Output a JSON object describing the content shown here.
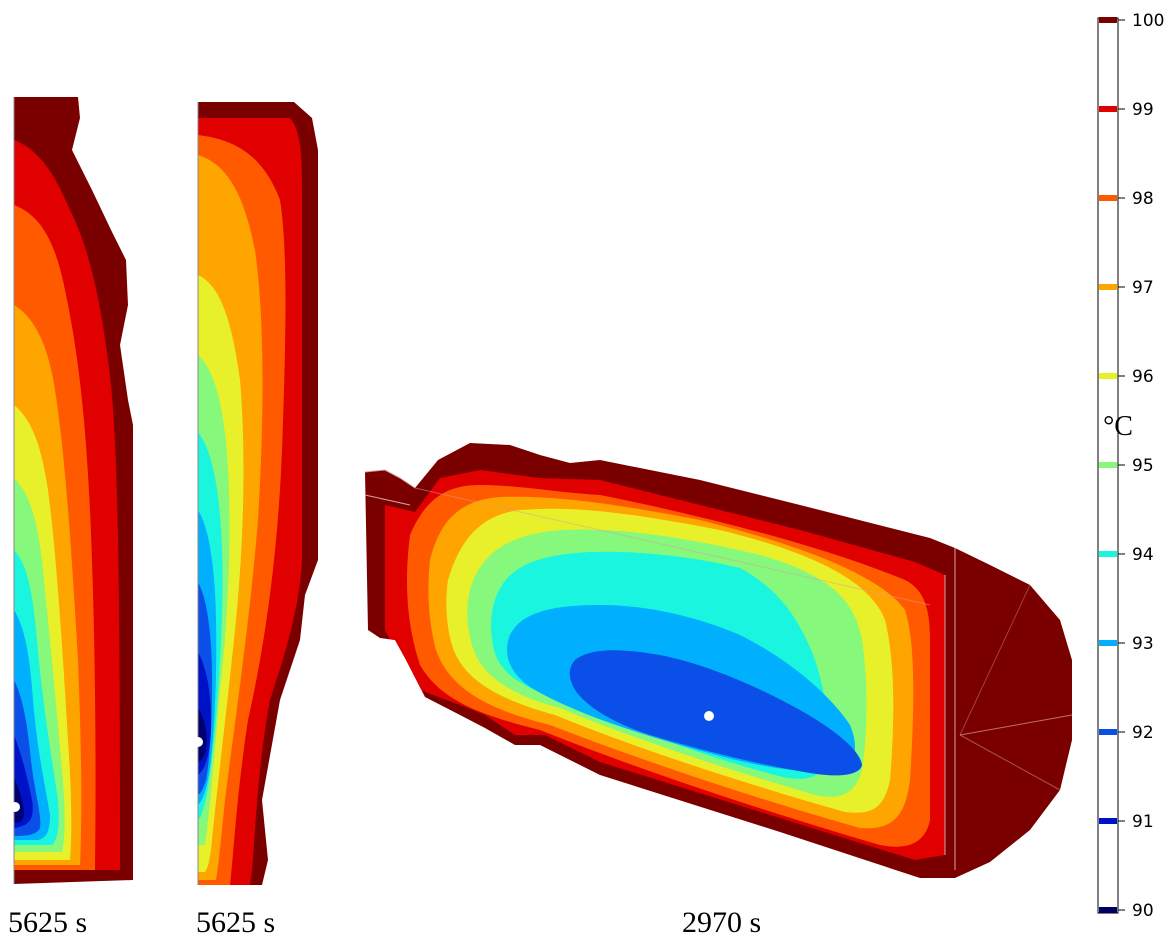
{
  "panels": [
    {
      "id": "left",
      "time_label": "5625 s"
    },
    {
      "id": "middle",
      "time_label": "5625 s"
    },
    {
      "id": "right",
      "time_label": "2970 s"
    }
  ],
  "colorbar": {
    "unit": "°C",
    "ticks": [
      {
        "value": "100",
        "color": "#7a0000"
      },
      {
        "value": "99",
        "color": "#e00000"
      },
      {
        "value": "98",
        "color": "#ff5a00"
      },
      {
        "value": "97",
        "color": "#ffa500"
      },
      {
        "value": "96",
        "color": "#e8f02a"
      },
      {
        "value": "95",
        "color": "#86f87c"
      },
      {
        "value": "94",
        "color": "#19f5de"
      },
      {
        "value": "93",
        "color": "#00b0ff"
      },
      {
        "value": "92",
        "color": "#0a50e8"
      },
      {
        "value": "91",
        "color": "#0012c8"
      },
      {
        "value": "90",
        "color": "#000060"
      }
    ]
  }
}
